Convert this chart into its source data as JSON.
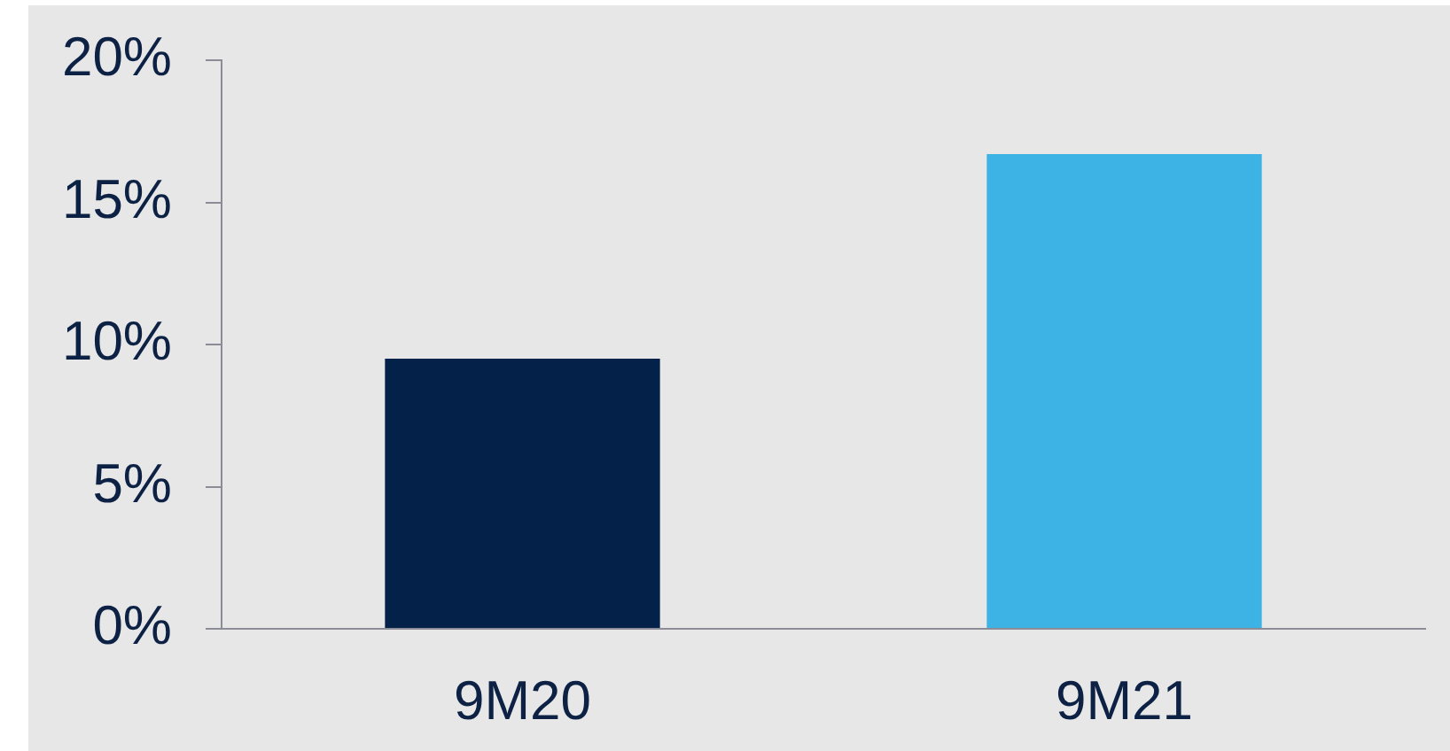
{
  "chart_data": {
    "type": "bar",
    "categories": [
      "9M20",
      "9M21"
    ],
    "values": [
      9.5,
      16.7
    ],
    "colors": [
      "#042249",
      "#3db3e5"
    ],
    "ylim": [
      0,
      20
    ],
    "yticks": [
      {
        "value": 0,
        "label": "0%"
      },
      {
        "value": 5,
        "label": "5%"
      },
      {
        "value": 10,
        "label": "10%"
      },
      {
        "value": 15,
        "label": "15%"
      },
      {
        "value": 20,
        "label": "20%"
      }
    ],
    "grid": false
  }
}
